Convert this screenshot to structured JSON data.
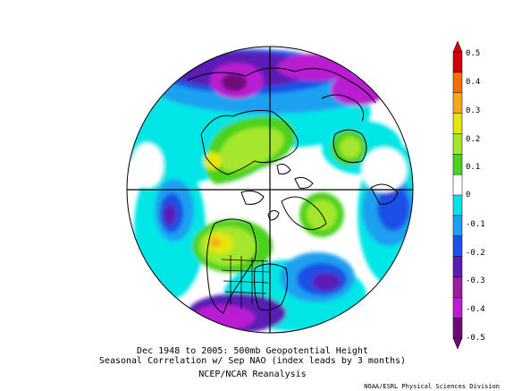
{
  "title_line1": "Dec 1948 to 2005: 500mb Geopotential Height",
  "title_line2": "Seasonal Correlation w/ Sep NAO (index leads by 3 months)",
  "title_line3": "NCEP/NCAR Reanalysis",
  "credit": "NOAA/ESRL Physical Sciences Division",
  "colorbar": {
    "labels": [
      "0.5",
      "0.4",
      "0.3",
      "0.2",
      "0.1",
      "0",
      "-0.1",
      "-0.2",
      "-0.3",
      "-0.4",
      "-0.5"
    ],
    "colors": [
      "#d6000a",
      "#f0700a",
      "#f5aa14",
      "#e6e60a",
      "#a5e62d",
      "#4bd21e",
      "#ffffff",
      "#00e6e6",
      "#1ea0f0",
      "#1e50e6",
      "#5a1eb4",
      "#9a1ea0",
      "#b91ed2",
      "#6e0a78"
    ]
  },
  "map": {
    "projection": "north-polar-stereographic",
    "background_color": "#ffffff",
    "colors": {
      "cyan": "#00e6e6",
      "light_blue": "#1ea0f0",
      "blue": "#1e50e6",
      "purple": "#5a1eb4",
      "magenta": "#b91ed2",
      "dark_purple": "#6e0a78",
      "green": "#4bd21e",
      "yellow_green": "#a5e62d",
      "yellow": "#e6e60a",
      "orange": "#f5aa14"
    }
  }
}
